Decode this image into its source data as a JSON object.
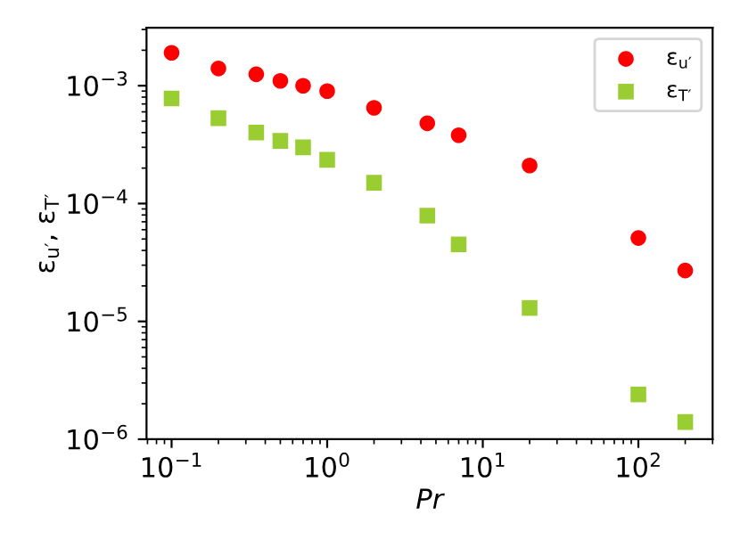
{
  "chart_data": {
    "type": "scatter",
    "xlabel": "Pr",
    "ylabel": "ε$_{u′}$, ε$_{T′}$",
    "log": "xy",
    "grid": false,
    "legend": "top right",
    "x": [
      0.1,
      0.2,
      0.35,
      0.5,
      0.7,
      1,
      2,
      4.4,
      7,
      20,
      100,
      200
    ],
    "series": [
      {
        "name": "ε$_{u′}$",
        "color": "#ff0000",
        "marker": "circle",
        "values": [
          0.0019,
          0.0014,
          0.00125,
          0.0011,
          0.001,
          0.0009,
          0.00065,
          0.00048,
          0.00038,
          0.00021,
          5.1e-05,
          2.7e-05
        ]
      },
      {
        "name": "ε$_{T′}$",
        "color": "#9acd32",
        "marker": "square",
        "values": [
          0.00078,
          0.00053,
          0.0004,
          0.00034,
          0.0003,
          0.000235,
          0.00015,
          7.9e-05,
          4.5e-05,
          1.3e-05,
          2.4e-06,
          1.4e-06
        ]
      }
    ],
    "xlim": [
      0.069,
      300
    ],
    "ylim": [
      1e-06,
      0.0031
    ],
    "xticks": [
      {
        "value": 0.1,
        "label": "10$^{−1}$"
      },
      {
        "value": 1,
        "label": "10$^{0}$"
      },
      {
        "value": 10,
        "label": "10$^{1}$"
      },
      {
        "value": 100,
        "label": "10$^{2}$"
      }
    ],
    "yticks": [
      {
        "value": 1e-06,
        "label": "10$^{−6}$"
      },
      {
        "value": 1e-05,
        "label": "10$^{−5}$"
      },
      {
        "value": 0.0001,
        "label": "10$^{−4}$"
      },
      {
        "value": 0.001,
        "label": "10$^{−3}$"
      }
    ]
  }
}
